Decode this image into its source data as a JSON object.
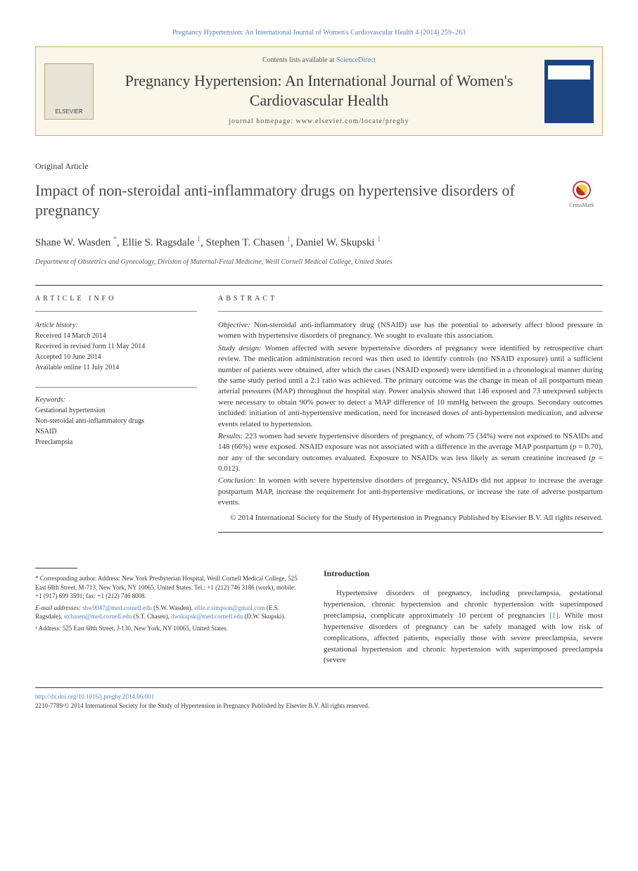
{
  "header": {
    "citation": "Pregnancy Hypertension: An International Journal of Women's Cardiovascular Health 4 (2014) 259–263",
    "contents_prefix": "Contents lists available at ",
    "contents_link": "ScienceDirect",
    "journal_name": "Pregnancy Hypertension: An International Journal of Women's Cardiovascular Health",
    "homepage_label": "journal homepage: ",
    "homepage_url": "www.elsevier.com/locate/preghy"
  },
  "article": {
    "type": "Original Article",
    "title": "Impact of non-steroidal anti-inflammatory drugs on hypertensive disorders of pregnancy",
    "crossmark_label": "CrossMark",
    "authors_html": "Shane W. Wasden *, Ellie S. Ragsdale ¹, Stephen T. Chasen ¹, Daniel W. Skupski ¹",
    "authors": [
      {
        "name": "Shane W. Wasden",
        "mark": "*"
      },
      {
        "name": "Ellie S. Ragsdale",
        "mark": "1"
      },
      {
        "name": "Stephen T. Chasen",
        "mark": "1"
      },
      {
        "name": "Daniel W. Skupski",
        "mark": "1"
      }
    ],
    "affiliation": "Department of Obstetrics and Gynecology, Division of Maternal-Fetal Medicine, Weill Cornell Medical College, United States"
  },
  "article_info": {
    "heading": "ARTICLE INFO",
    "history_label": "Article history:",
    "history": [
      "Received 14 March 2014",
      "Received in revised form 11 May 2014",
      "Accepted 10 June 2014",
      "Available online 11 July 2014"
    ],
    "keywords_label": "Keywords:",
    "keywords": [
      "Gestational hypertension",
      "Non-steroidal anti-inflammatory drugs",
      "NSAID",
      "Preeclampsia"
    ]
  },
  "abstract": {
    "heading": "ABSTRACT",
    "objective_label": "Objective:",
    "objective": "Non-steroidal anti-inflammatory drug (NSAID) use has the potential to adversely affect blood pressure in women with hypertensive disorders of pregnancy. We sought to evaluate this association.",
    "design_label": "Study design:",
    "design": "Women affected with severe hypertensive disorders of pregnancy were identified by retrospective chart review. The medication administration record was then used to identify controls (no NSAID exposure) until a sufficient number of patients were obtained, after which the cases (NSAID exposed) were identified in a chronological manner during the same study period until a 2:1 ratio was achieved. The primary outcome was the change in mean of all postpartum mean arterial pressures (MAP) throughout the hospital stay. Power analysis showed that 146 exposed and 73 unexposed subjects were necessary to obtain 90% power to detect a MAP difference of 10 mmHg between the groups. Secondary outcomes included: initiation of anti-hypertensive medication, need for increased doses of anti-hypertension medication, and adverse events related to hypertension.",
    "results_label": "Results:",
    "results": "223 women had severe hypertensive disorders of pregnancy, of whom 75 (34%) were not exposed to NSAIDs and 148 (66%) were exposed. NSAID exposure was not associated with a difference in the average MAP postpartum (p = 0.70), nor any of the secondary outcomes evaluated. Exposure to NSAIDs was less likely as serum creatinine increased (p = 0.012).",
    "conclusion_label": "Conclusion:",
    "conclusion": "In women with severe hypertensive disorders of pregnancy, NSAIDs did not appear to increase the average postpartum MAP, increase the requirement for anti-hypertensive medications, or increase the rate of adverse postpartum events.",
    "copyright": "© 2014 International Society for the Study of Hypertension in Pregnancy Published by Elsevier B.V. All rights reserved."
  },
  "footnotes": {
    "corresponding": "* Corresponding author. Address: New York Presbyterian Hospital, Weill Cornell Medical College, 525 East 68th Street, M-713, New York, NY 10065, United States. Tel.: +1 (212) 746 3186 (work), mobile: +1 (917) 699 3591; fax: +1 (212) 746 8008.",
    "emails_label": "E-mail addresses:",
    "emails": [
      {
        "addr": "shw9047@med.cornell.edu",
        "who": "(S.W. Wasden)"
      },
      {
        "addr": "ellie.e.simpson@gmail.com",
        "who": "(E.S. Ragsdale)"
      },
      {
        "addr": "stchasen@med.cornell.edu",
        "who": "(S.T. Chasen)"
      },
      {
        "addr": "dwskupsk@med.cornell.edu",
        "who": "(D.W. Skupski)"
      }
    ],
    "addr1": "¹ Address: 525 East 68th Street, J-130, New York, NY 10065, United States."
  },
  "introduction": {
    "heading": "Introduction",
    "text_pre": "Hypertensive disorders of pregnancy, including preeclampsia, gestational hypertension, chronic hypertension and chronic hypertension with superimposed preeclampsia, complicate approximately 10 percent of pregnancies ",
    "ref": "[1]",
    "text_post": ". While most hypertensive disorders of pregnancy can be safely managed with low risk of complications, affected patients, especially those with severe preeclampsia, severe gestational hypertension and chronic hypertension with superimposed preeclampsia (severe"
  },
  "footer": {
    "doi": "http://dx.doi.org/10.1016/j.preghy.2014.06.001",
    "issn_line": "2210-7789/© 2014 International Society for the Study of Hypertension in Pregnancy Published by Elsevier B.V. All rights reserved."
  },
  "colors": {
    "link": "#5682b5",
    "box_border": "#c8b06a",
    "box_bg": "#faf6ea",
    "cover": "#1a4480"
  }
}
